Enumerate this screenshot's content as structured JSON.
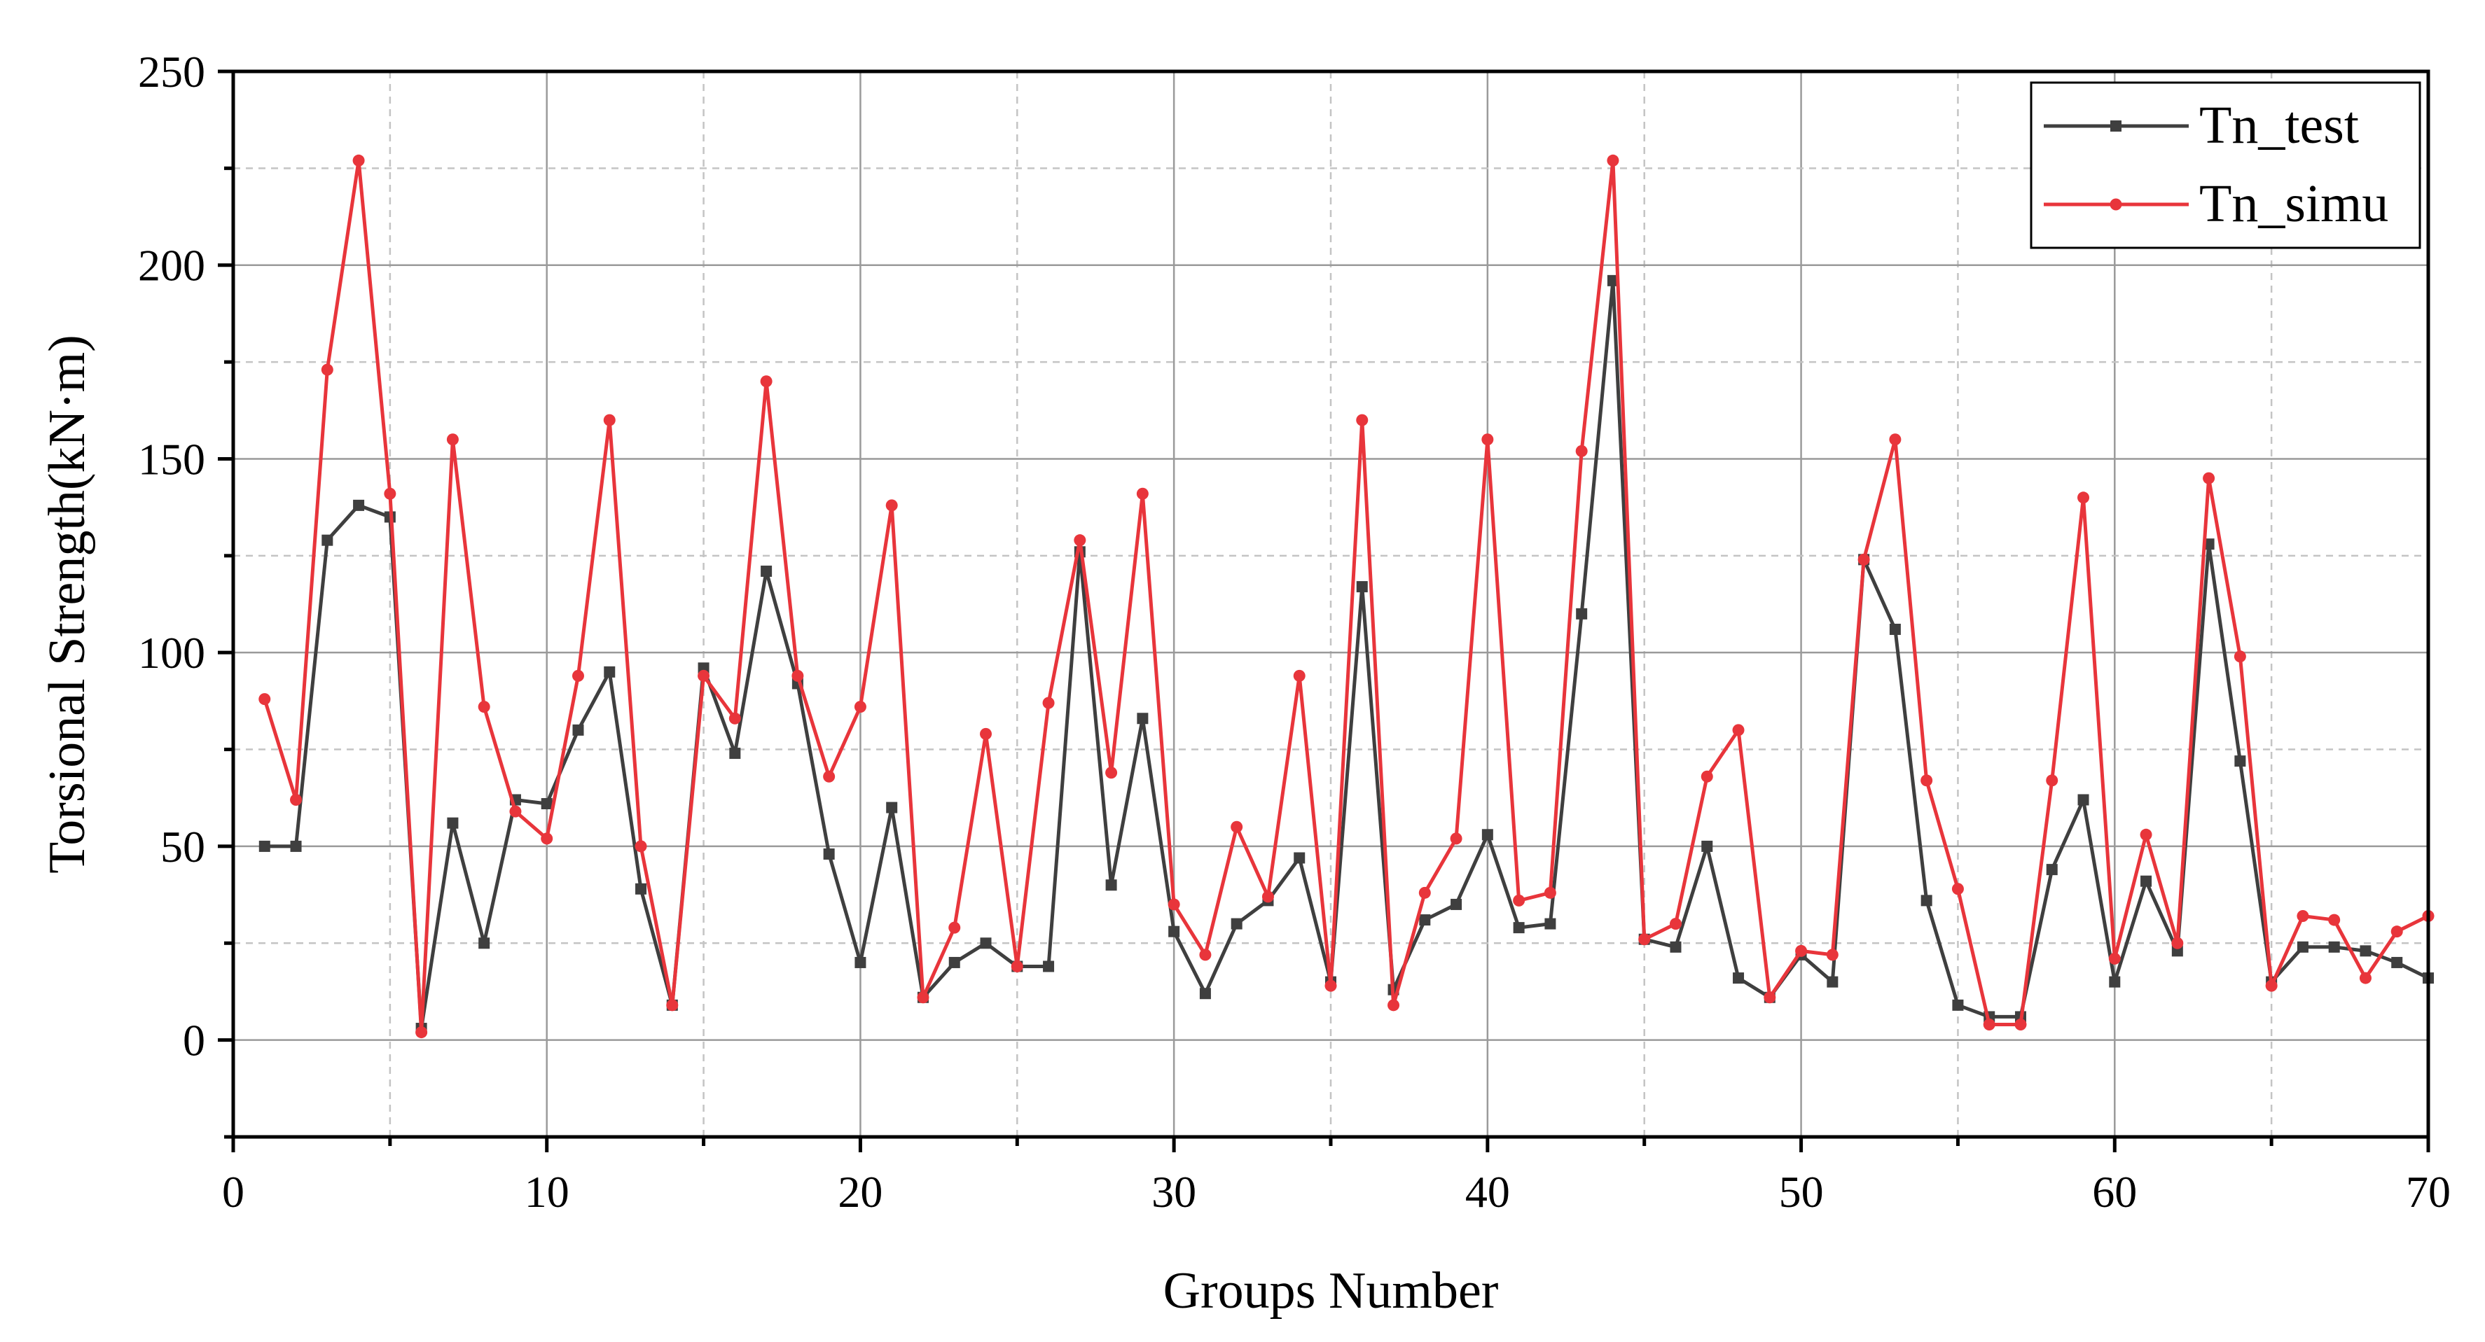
{
  "chart_data": {
    "type": "line",
    "xlabel": "Groups Number",
    "ylabel": "Torsional Strength(kN·m)",
    "xlim": [
      0,
      70
    ],
    "ylim": [
      -25,
      250
    ],
    "x_ticks": [
      0,
      10,
      20,
      30,
      40,
      50,
      60,
      70
    ],
    "y_ticks": [
      0,
      50,
      100,
      150,
      200,
      250
    ],
    "grid": true,
    "legend_position": "top-right",
    "x": [
      1,
      2,
      3,
      4,
      5,
      6,
      7,
      8,
      9,
      10,
      11,
      12,
      13,
      14,
      15,
      16,
      17,
      18,
      19,
      20,
      21,
      22,
      23,
      24,
      25,
      26,
      27,
      28,
      29,
      30,
      31,
      32,
      33,
      34,
      35,
      36,
      37,
      38,
      39,
      40,
      41,
      42,
      43,
      44,
      45,
      46,
      47,
      48,
      49,
      50,
      51,
      52,
      53,
      54,
      55,
      56,
      57,
      58,
      59,
      60,
      61,
      62,
      63,
      64,
      65,
      66,
      67,
      68,
      69,
      70
    ],
    "series": [
      {
        "name": "Tn_test",
        "color": "#3f3f3f",
        "marker": "square",
        "values": [
          50,
          50,
          129,
          138,
          135,
          3,
          56,
          25,
          62,
          61,
          80,
          95,
          39,
          9,
          96,
          74,
          121,
          92,
          48,
          20,
          60,
          11,
          20,
          25,
          19,
          19,
          126,
          40,
          83,
          28,
          12,
          30,
          36,
          47,
          15,
          117,
          13,
          31,
          35,
          53,
          29,
          30,
          110,
          196,
          26,
          24,
          50,
          16,
          11,
          22,
          15,
          124,
          106,
          36,
          9,
          6,
          6,
          44,
          62,
          15,
          41,
          23,
          128,
          72,
          15,
          24,
          24,
          23,
          20,
          16
        ]
      },
      {
        "name": "Tn_simu",
        "color": "#e8353b",
        "marker": "circle",
        "values": [
          88,
          62,
          173,
          227,
          141,
          2,
          155,
          86,
          59,
          52,
          94,
          160,
          50,
          9,
          94,
          83,
          170,
          94,
          68,
          86,
          138,
          11,
          29,
          79,
          19,
          87,
          129,
          69,
          141,
          35,
          22,
          55,
          37,
          94,
          14,
          160,
          9,
          38,
          52,
          155,
          36,
          38,
          152,
          227,
          26,
          30,
          68,
          80,
          11,
          23,
          22,
          124,
          155,
          67,
          39,
          4,
          4,
          67,
          140,
          21,
          53,
          25,
          145,
          99,
          14,
          32,
          31,
          16,
          28,
          32
        ]
      }
    ]
  }
}
